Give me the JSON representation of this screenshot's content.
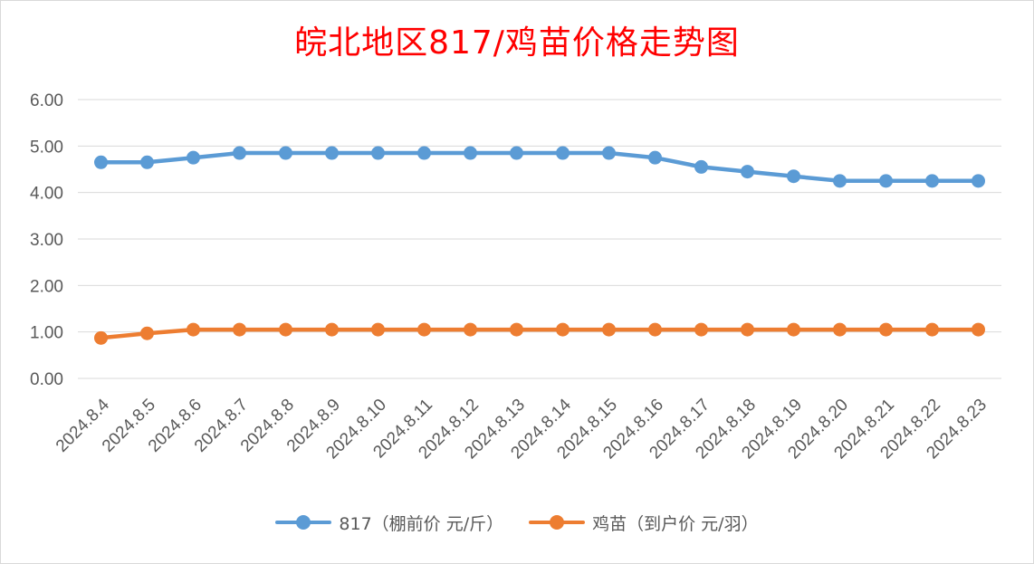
{
  "chart_data": {
    "type": "line",
    "title": "皖北地区817/鸡苗价格走势图",
    "categories": [
      "2024.8.4",
      "2024.8.5",
      "2024.8.6",
      "2024.8.7",
      "2024.8.8",
      "2024.8.9",
      "2024.8.10",
      "2024.8.11",
      "2024.8.12",
      "2024.8.13",
      "2024.8.14",
      "2024.8.15",
      "2024.8.16",
      "2024.8.17",
      "2024.8.18",
      "2024.8.19",
      "2024.8.20",
      "2024.8.21",
      "2024.8.22",
      "2024.8.23"
    ],
    "ylim": [
      0,
      6
    ],
    "yticks": [
      "0.00",
      "1.00",
      "2.00",
      "3.00",
      "4.00",
      "5.00",
      "6.00"
    ],
    "grid": true,
    "legend_position": "bottom",
    "series": [
      {
        "name": "817（棚前价 元/斤）",
        "color": "#5b9bd5",
        "values": [
          4.65,
          4.65,
          4.75,
          4.85,
          4.85,
          4.85,
          4.85,
          4.85,
          4.85,
          4.85,
          4.85,
          4.85,
          4.75,
          4.55,
          4.45,
          4.35,
          4.25,
          4.25,
          4.25,
          4.25
        ]
      },
      {
        "name": "鸡苗（到户价 元/羽）",
        "color": "#ed7d31",
        "values": [
          0.87,
          0.97,
          1.05,
          1.05,
          1.05,
          1.05,
          1.05,
          1.05,
          1.05,
          1.05,
          1.05,
          1.05,
          1.05,
          1.05,
          1.05,
          1.05,
          1.05,
          1.05,
          1.05,
          1.05
        ]
      }
    ]
  }
}
